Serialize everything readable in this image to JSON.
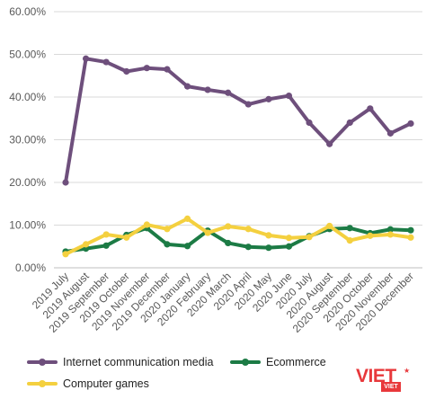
{
  "chart_data": {
    "type": "line",
    "title": "",
    "xlabel": "",
    "ylabel": "",
    "ylim": [
      0,
      60
    ],
    "y_tick_labels": [
      "0.00%",
      "10.00%",
      "20.00%",
      "30.00%",
      "40.00%",
      "50.00%",
      "60.00%"
    ],
    "grid": "horizontal",
    "legend_position": "bottom",
    "categories": [
      "2019 July",
      "2019 August",
      "2019 September",
      "2019 October",
      "2019 November",
      "2019 December",
      "2020 January",
      "2020 February",
      "2020 March",
      "2020 April",
      "2020 May",
      "2020 June",
      "2020 July",
      "2020 August",
      "2020 September",
      "2020 October",
      "2020 November",
      "2020 December"
    ],
    "series": [
      {
        "name": "Internet communication media",
        "color": "#6e4f7c",
        "values": [
          20.0,
          49.0,
          48.2,
          46.0,
          46.8,
          46.5,
          42.5,
          41.7,
          41.0,
          38.3,
          39.5,
          40.3,
          34.0,
          29.0,
          34.0,
          37.3,
          31.5,
          33.8
        ]
      },
      {
        "name": "Ecommerce",
        "color": "#1c7b45",
        "values": [
          3.8,
          4.5,
          5.2,
          7.7,
          9.3,
          5.5,
          5.1,
          8.7,
          5.8,
          4.9,
          4.7,
          5.0,
          7.4,
          9.1,
          9.3,
          8.1,
          9.0,
          8.8
        ]
      },
      {
        "name": "Computer games",
        "color": "#f4d03f",
        "values": [
          3.2,
          5.5,
          7.8,
          7.1,
          10.1,
          9.1,
          11.5,
          8.2,
          9.7,
          9.1,
          7.6,
          7.0,
          7.2,
          9.8,
          6.4,
          7.5,
          7.8,
          7.1
        ]
      }
    ]
  },
  "logo": {
    "main": "VIET",
    "sub": "VIET"
  }
}
